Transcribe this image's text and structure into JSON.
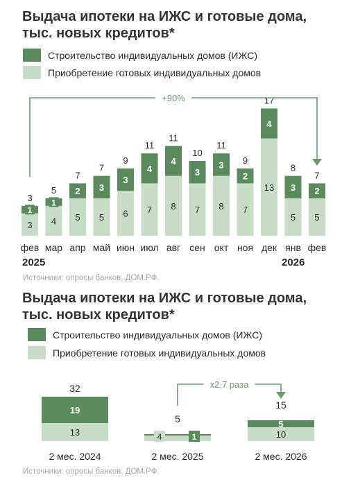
{
  "colors": {
    "dark": "#5a8a5e",
    "light": "#c9dcc8",
    "line": "#6a9a6e",
    "text": "#2b2b2b",
    "source": "#a5a5a5"
  },
  "chart_data": [
    {
      "type": "bar",
      "stacked": true,
      "title": "Выдача ипотеки на ИЖС и готовые дома, тыс. новых кредитов*",
      "legend": [
        "Строительство индивидуальных домов (ИЖС)",
        "Приобретение готовых индивидуальных домов"
      ],
      "categories": [
        "фев",
        "мар",
        "апр",
        "май",
        "июн",
        "июл",
        "авг",
        "сен",
        "окт",
        "ноя",
        "дек",
        "янв",
        "фев"
      ],
      "year_labels": [
        "2025",
        "2026"
      ],
      "series": [
        {
          "name": "Строительство индивидуальных домов (ИЖС)",
          "values": [
            1,
            1,
            2,
            3,
            3,
            4,
            4,
            3,
            3,
            2,
            4,
            3,
            2
          ]
        },
        {
          "name": "Приобретение готовых индивидуальных домов",
          "values": [
            3,
            4,
            5,
            5,
            6,
            7,
            8,
            7,
            8,
            7,
            13,
            5,
            5
          ]
        }
      ],
      "totals": [
        3,
        5,
        7,
        7,
        9,
        11,
        11,
        10,
        11,
        9,
        17,
        8,
        7
      ],
      "annotation": "+90%",
      "source": "Источники: опросы банков, ДОМ.РФ."
    },
    {
      "type": "bar",
      "stacked": true,
      "title": "Выдача ипотеки на ИЖС и готовые дома, тыс. новых кредитов*",
      "legend": [
        "Строительство индивидуальных домов (ИЖС)",
        "Приобретение готовых индивидуальных домов"
      ],
      "categories": [
        "2 мес. 2024",
        "2 мес. 2025",
        "2 мес. 2026"
      ],
      "series": [
        {
          "name": "Строительство индивидуальных домов (ИЖС)",
          "values": [
            19,
            1,
            5
          ]
        },
        {
          "name": "Приобретение готовых индивидуальных домов",
          "values": [
            13,
            4,
            10
          ]
        }
      ],
      "totals": [
        32,
        5,
        15
      ],
      "annotation": "x2,7 раза",
      "source": "Источники: опросы банков, ДОМ.РФ."
    }
  ]
}
